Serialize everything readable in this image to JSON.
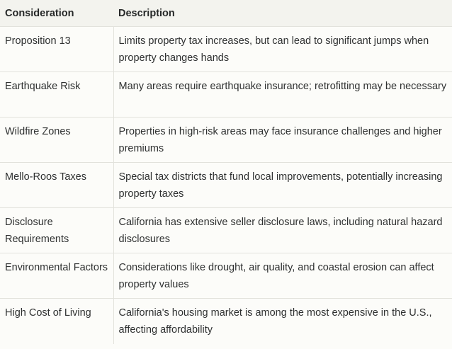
{
  "table": {
    "headers": [
      "Consideration",
      "Description"
    ],
    "rows": [
      {
        "consideration": "Proposition 13",
        "description": "Limits property tax increases, but can lead to significant jumps when property changes hands"
      },
      {
        "consideration": "Earthquake Risk",
        "description": "Many areas require earthquake insurance; retrofitting may be necessary"
      },
      {
        "consideration": "Wildfire Zones",
        "description": "Properties in high-risk areas may face insurance challenges and higher premiums"
      },
      {
        "consideration": "Mello-Roos Taxes",
        "description": "Special tax districts that fund local improvements, potentially increasing property taxes"
      },
      {
        "consideration": "Disclosure Requirements",
        "description": "California has extensive seller disclosure laws, including natural hazard disclosures"
      },
      {
        "consideration": "Environmental Factors",
        "description": "Considerations like drought, air quality, and coastal erosion can affect property values"
      },
      {
        "consideration": "High Cost of Living",
        "description": "California's housing market is among the most expensive in the U.S., affecting affordability"
      }
    ]
  }
}
